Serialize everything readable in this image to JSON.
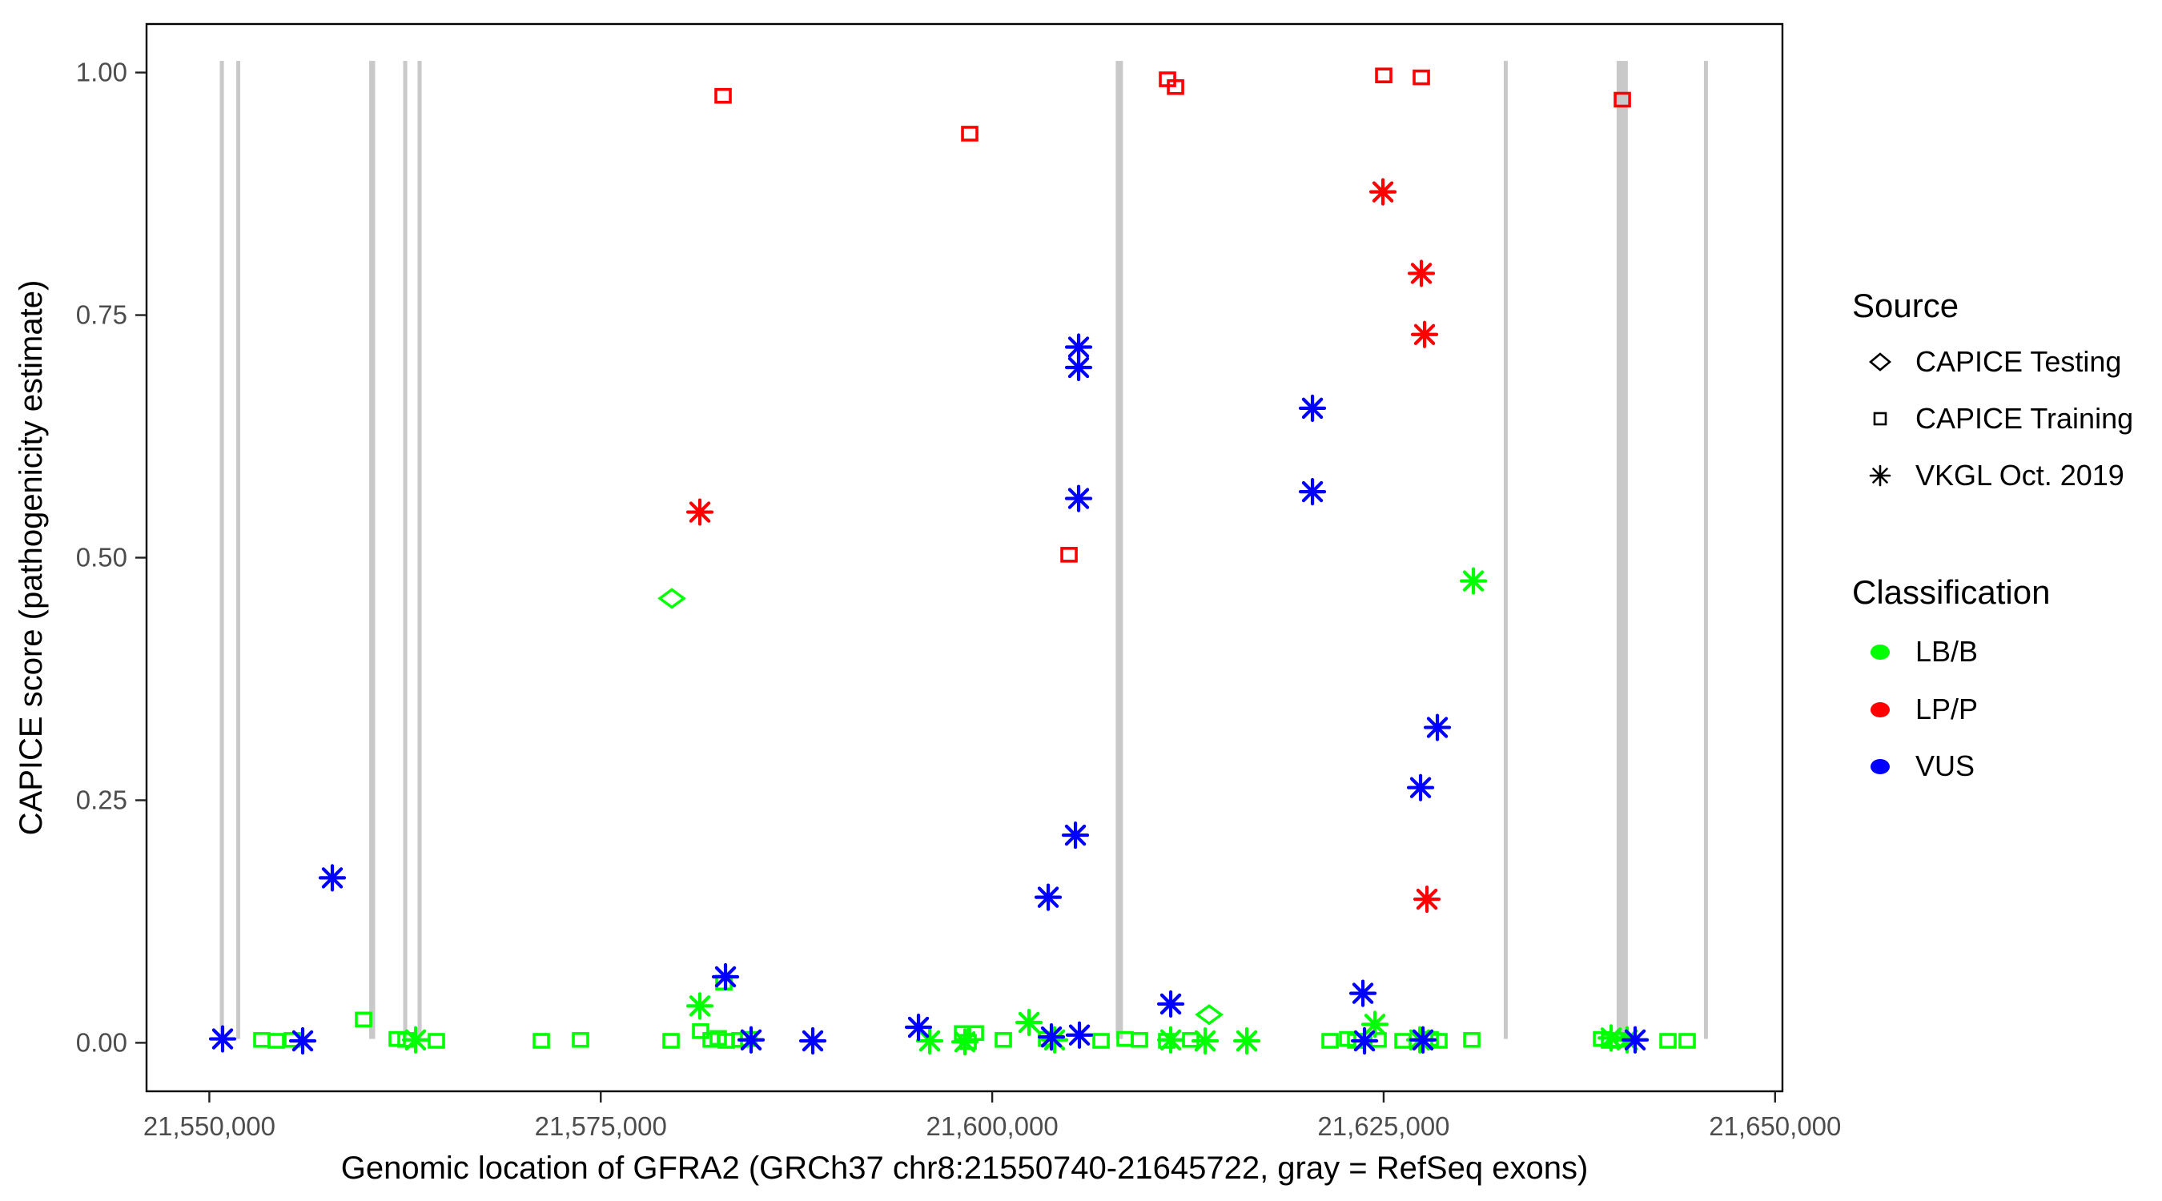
{
  "chart_data": {
    "type": "scatter",
    "title": "",
    "xlabel": "Genomic location of GFRA2 (GRCh37 chr8:21550740-21645722, gray = RefSeq exons)",
    "ylabel": "CAPICE score (pathogenicity estimate)",
    "xlim": [
      21545990,
      21650470
    ],
    "ylim": [
      -0.05,
      1.05
    ],
    "grid": false,
    "legend_position": "right",
    "x_ticks": [
      {
        "value": 21550000,
        "label": "21,550,000"
      },
      {
        "value": 21575000,
        "label": "21,575,000"
      },
      {
        "value": 21600000,
        "label": "21,600,000"
      },
      {
        "value": 21625000,
        "label": "21,625,000"
      },
      {
        "value": 21650000,
        "label": "21,650,000"
      }
    ],
    "y_ticks": [
      {
        "value": 0.0,
        "label": "0.00"
      },
      {
        "value": 0.25,
        "label": "0.25"
      },
      {
        "value": 0.5,
        "label": "0.50"
      },
      {
        "value": 0.75,
        "label": "0.75"
      },
      {
        "value": 1.0,
        "label": "1.00"
      }
    ],
    "exon_color": "#C9C9C9",
    "refseq_exons": [
      {
        "start": 21550670,
        "end": 21550930
      },
      {
        "start": 21551720,
        "end": 21551975
      },
      {
        "start": 21560210,
        "end": 21560590
      },
      {
        "start": 21562380,
        "end": 21562640
      },
      {
        "start": 21563300,
        "end": 21563560
      },
      {
        "start": 21607890,
        "end": 21608350
      },
      {
        "start": 21632670,
        "end": 21632925
      },
      {
        "start": 21639880,
        "end": 21640595
      },
      {
        "start": 21645455,
        "end": 21645710
      }
    ],
    "classification_colors": {
      "LB/B": "#00FF00",
      "LP/P": "#FF0000",
      "VUS": "#0000FF"
    },
    "series": [
      {
        "name": "CAPICE Testing",
        "shape": "diamond",
        "classification": "LB/B",
        "points": [
          [
            21579539,
            0.458
          ],
          [
            21613856,
            0.029
          ]
        ]
      },
      {
        "name": "CAPICE Training",
        "shape": "square",
        "classification": "LP/P",
        "points": [
          [
            21582812,
            0.976
          ],
          [
            21598564,
            0.937
          ],
          [
            21611196,
            0.993
          ],
          [
            21611708,
            0.985
          ],
          [
            21625004,
            0.997
          ],
          [
            21627408,
            0.995
          ],
          [
            21640245,
            0.972
          ],
          [
            21604906,
            0.503
          ]
        ]
      },
      {
        "name": "CAPICE Training",
        "shape": "square",
        "classification": "LB/B",
        "points": [
          [
            21553355,
            0.003
          ],
          [
            21554275,
            0.002
          ],
          [
            21555298,
            0.003
          ],
          [
            21559850,
            0.024
          ],
          [
            21561998,
            0.004
          ],
          [
            21562560,
            0.003
          ],
          [
            21564504,
            0.002
          ],
          [
            21571203,
            0.002
          ],
          [
            21573709,
            0.003
          ],
          [
            21579488,
            0.002
          ],
          [
            21581380,
            0.012
          ],
          [
            21582863,
            0.062
          ],
          [
            21582045,
            0.003
          ],
          [
            21582505,
            0.005
          ],
          [
            21583017,
            0.002
          ],
          [
            21583886,
            0.003
          ],
          [
            21584449,
            0.004
          ],
          [
            21598104,
            0.01
          ],
          [
            21598922,
            0.01
          ],
          [
            21598462,
            0.001
          ],
          [
            21600712,
            0.003
          ],
          [
            21603474,
            0.004
          ],
          [
            21606951,
            0.002
          ],
          [
            21608486,
            0.004
          ],
          [
            21609406,
            0.003
          ],
          [
            21611145,
            0.002
          ],
          [
            21612679,
            0.003
          ],
          [
            21621578,
            0.002
          ],
          [
            21622703,
            0.004
          ],
          [
            21623215,
            0.002
          ],
          [
            21624646,
            0.003
          ],
          [
            21626232,
            0.002
          ],
          [
            21627971,
            0.004
          ],
          [
            21628533,
            0.002
          ],
          [
            21630630,
            0.003
          ],
          [
            21638915,
            0.004
          ],
          [
            21639427,
            0.002
          ],
          [
            21639938,
            0.003
          ],
          [
            21643160,
            0.002
          ],
          [
            21644387,
            0.002
          ]
        ]
      },
      {
        "name": "VKGL Oct. 2019",
        "shape": "asterisk",
        "classification": "LB/B",
        "points": [
          [
            21563174,
            0.003
          ],
          [
            21581329,
            0.038
          ],
          [
            21596007,
            0.002
          ],
          [
            21598257,
            0.001
          ],
          [
            21602349,
            0.021
          ],
          [
            21603985,
            0.003
          ],
          [
            21611401,
            0.003
          ],
          [
            21613600,
            0.002
          ],
          [
            21616259,
            0.002
          ],
          [
            21624442,
            0.019
          ],
          [
            21627306,
            0.003
          ],
          [
            21630733,
            0.476
          ],
          [
            21639529,
            0.005
          ],
          [
            21640551,
            0.003
          ]
        ]
      },
      {
        "name": "VKGL Oct. 2019",
        "shape": "asterisk",
        "classification": "LP/P",
        "points": [
          [
            21581329,
            0.547
          ],
          [
            21624953,
            0.877
          ],
          [
            21627408,
            0.793
          ],
          [
            21627613,
            0.73
          ],
          [
            21627766,
            0.148
          ]
        ]
      },
      {
        "name": "VKGL Oct. 2019",
        "shape": "asterisk",
        "classification": "VUS",
        "points": [
          [
            21550848,
            0.004
          ],
          [
            21555963,
            0.002
          ],
          [
            21557855,
            0.17
          ],
          [
            21582966,
            0.068
          ],
          [
            21584602,
            0.003
          ],
          [
            21588540,
            0.002
          ],
          [
            21595291,
            0.016
          ],
          [
            21605519,
            0.717
          ],
          [
            21605519,
            0.696
          ],
          [
            21605519,
            0.561
          ],
          [
            21605315,
            0.214
          ],
          [
            21603576,
            0.15
          ],
          [
            21603781,
            0.006
          ],
          [
            21605570,
            0.008
          ],
          [
            21611401,
            0.04
          ],
          [
            21623675,
            0.051
          ],
          [
            21623777,
            0.002
          ],
          [
            21627510,
            0.003
          ],
          [
            21620453,
            0.654
          ],
          [
            21620453,
            0.568
          ],
          [
            21628431,
            0.325
          ],
          [
            21627357,
            0.263
          ],
          [
            21641063,
            0.003
          ]
        ]
      }
    ]
  },
  "legend": {
    "source": {
      "title": "Source",
      "items": [
        {
          "label": "CAPICE Testing",
          "shape": "diamond"
        },
        {
          "label": "CAPICE Training",
          "shape": "square"
        },
        {
          "label": "VKGL Oct. 2019",
          "shape": "asterisk"
        }
      ]
    },
    "classification": {
      "title": "Classification",
      "items": [
        {
          "label": "LB/B",
          "color": "#00FF00"
        },
        {
          "label": "LP/P",
          "color": "#FF0000"
        },
        {
          "label": "VUS",
          "color": "#0000FF"
        }
      ]
    }
  }
}
